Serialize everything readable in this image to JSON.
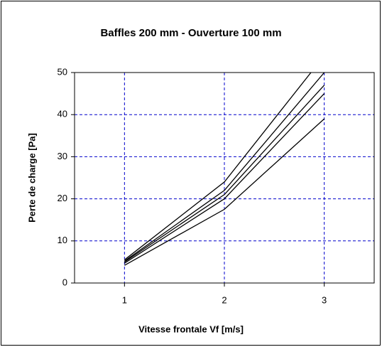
{
  "chart_data": {
    "type": "line",
    "title": "Baffles 200 mm - Ouverture 100 mm",
    "x_label": "Vitesse frontale Vf [m/s]",
    "y_label": "Perte de charge [Pa]",
    "x": [
      1,
      2,
      3
    ],
    "series": [
      {
        "color": "#000000",
        "values": [
          5.5,
          24,
          54
        ]
      },
      {
        "color": "#000000",
        "values": [
          5.2,
          22,
          50
        ]
      },
      {
        "color": "#000000",
        "values": [
          5,
          21,
          47
        ]
      },
      {
        "color": "#000000",
        "values": [
          4.7,
          20,
          45
        ]
      },
      {
        "color": "#000000",
        "values": [
          4.2,
          17.5,
          39
        ]
      }
    ],
    "xlim": [
      0.5,
      3.5
    ],
    "xticks": [
      1,
      2,
      3
    ],
    "ylim": [
      0,
      50
    ],
    "yticks": [
      0,
      10,
      20,
      30,
      40,
      50
    ],
    "grid": true,
    "grid_color": "#0000cc"
  }
}
